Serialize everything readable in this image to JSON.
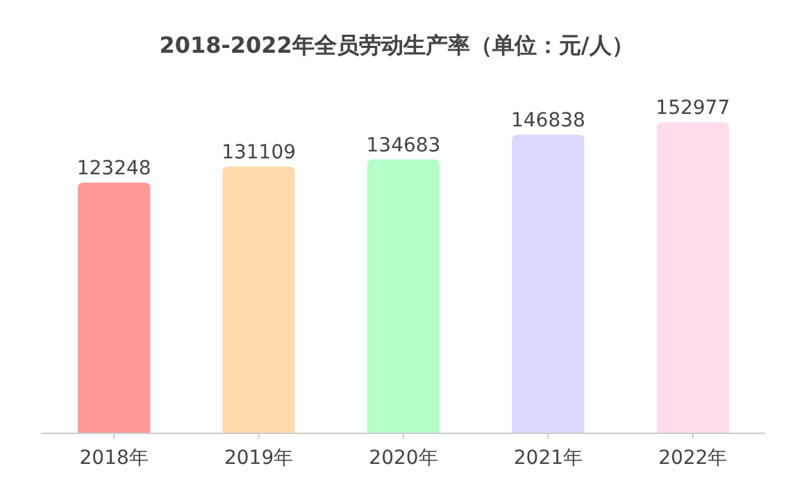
{
  "chart_data": {
    "type": "bar",
    "title": "2018-2022年全员劳动生产率（单位：元/人）",
    "categories": [
      "2018年",
      "2019年",
      "2020年",
      "2021年",
      "2022年"
    ],
    "values": [
      123248,
      131109,
      134683,
      146838,
      152977
    ],
    "colors": [
      "#ff9999",
      "#ffdaaa",
      "#b5ffc8",
      "#d9d9ff",
      "#ffdcee"
    ],
    "data_labels": true,
    "grid": false
  }
}
